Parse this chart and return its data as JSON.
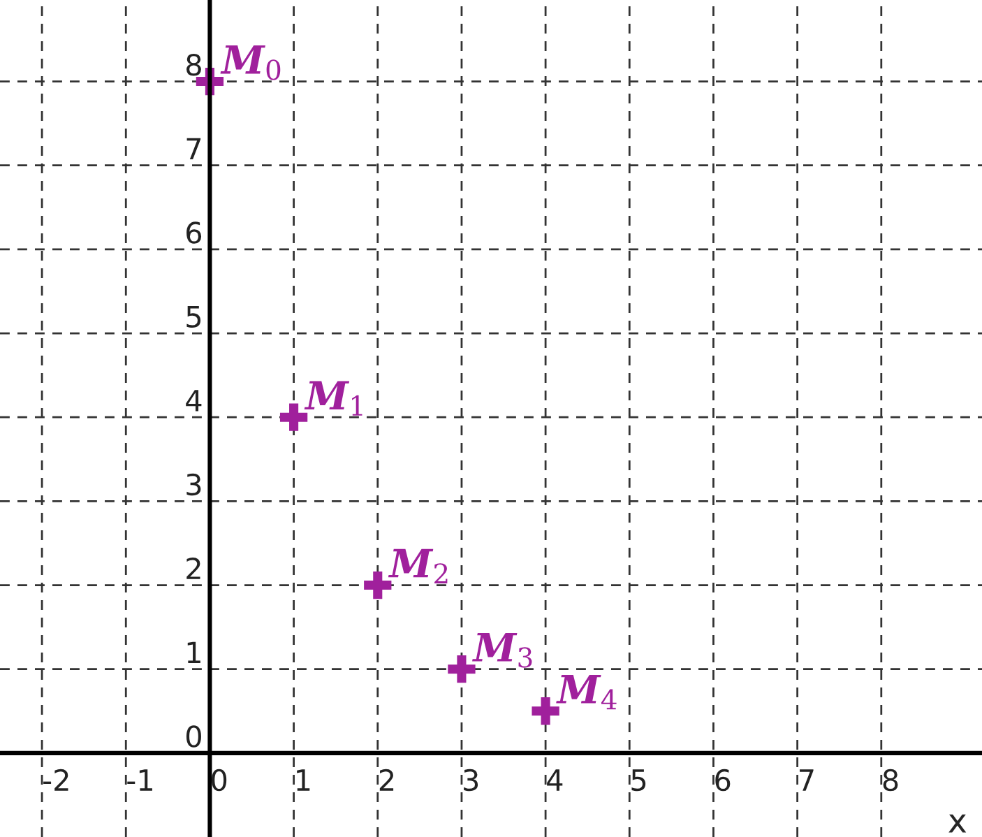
{
  "chart_data": {
    "type": "scatter",
    "xlabel": "x",
    "x": [
      0,
      1,
      2,
      3,
      4
    ],
    "series": [
      {
        "color": "#a0209c",
        "values": [
          8,
          4,
          2,
          1,
          0.5
        ]
      }
    ],
    "marker": "cross",
    "grid": true,
    "xlim": [
      -2.5,
      9.2
    ],
    "ylim": [
      -1.0,
      8.97
    ],
    "xticks": [
      -2,
      -1,
      0,
      1,
      2,
      3,
      4,
      5,
      6,
      7,
      8
    ],
    "yticks": [
      0,
      1,
      2,
      3,
      4,
      5,
      6,
      7,
      8
    ],
    "annotations": [
      {
        "text": "M$_{0}$",
        "x": 0,
        "y": 8
      },
      {
        "text": "M$_{1}$",
        "x": 1,
        "y": 4
      },
      {
        "text": "M$_{2}$",
        "x": 2,
        "y": 2
      },
      {
        "text": "M$_{3}$",
        "x": 3,
        "y": 1
      },
      {
        "text": "M$_{4}$",
        "x": 4,
        "y": 0.5
      }
    ]
  }
}
